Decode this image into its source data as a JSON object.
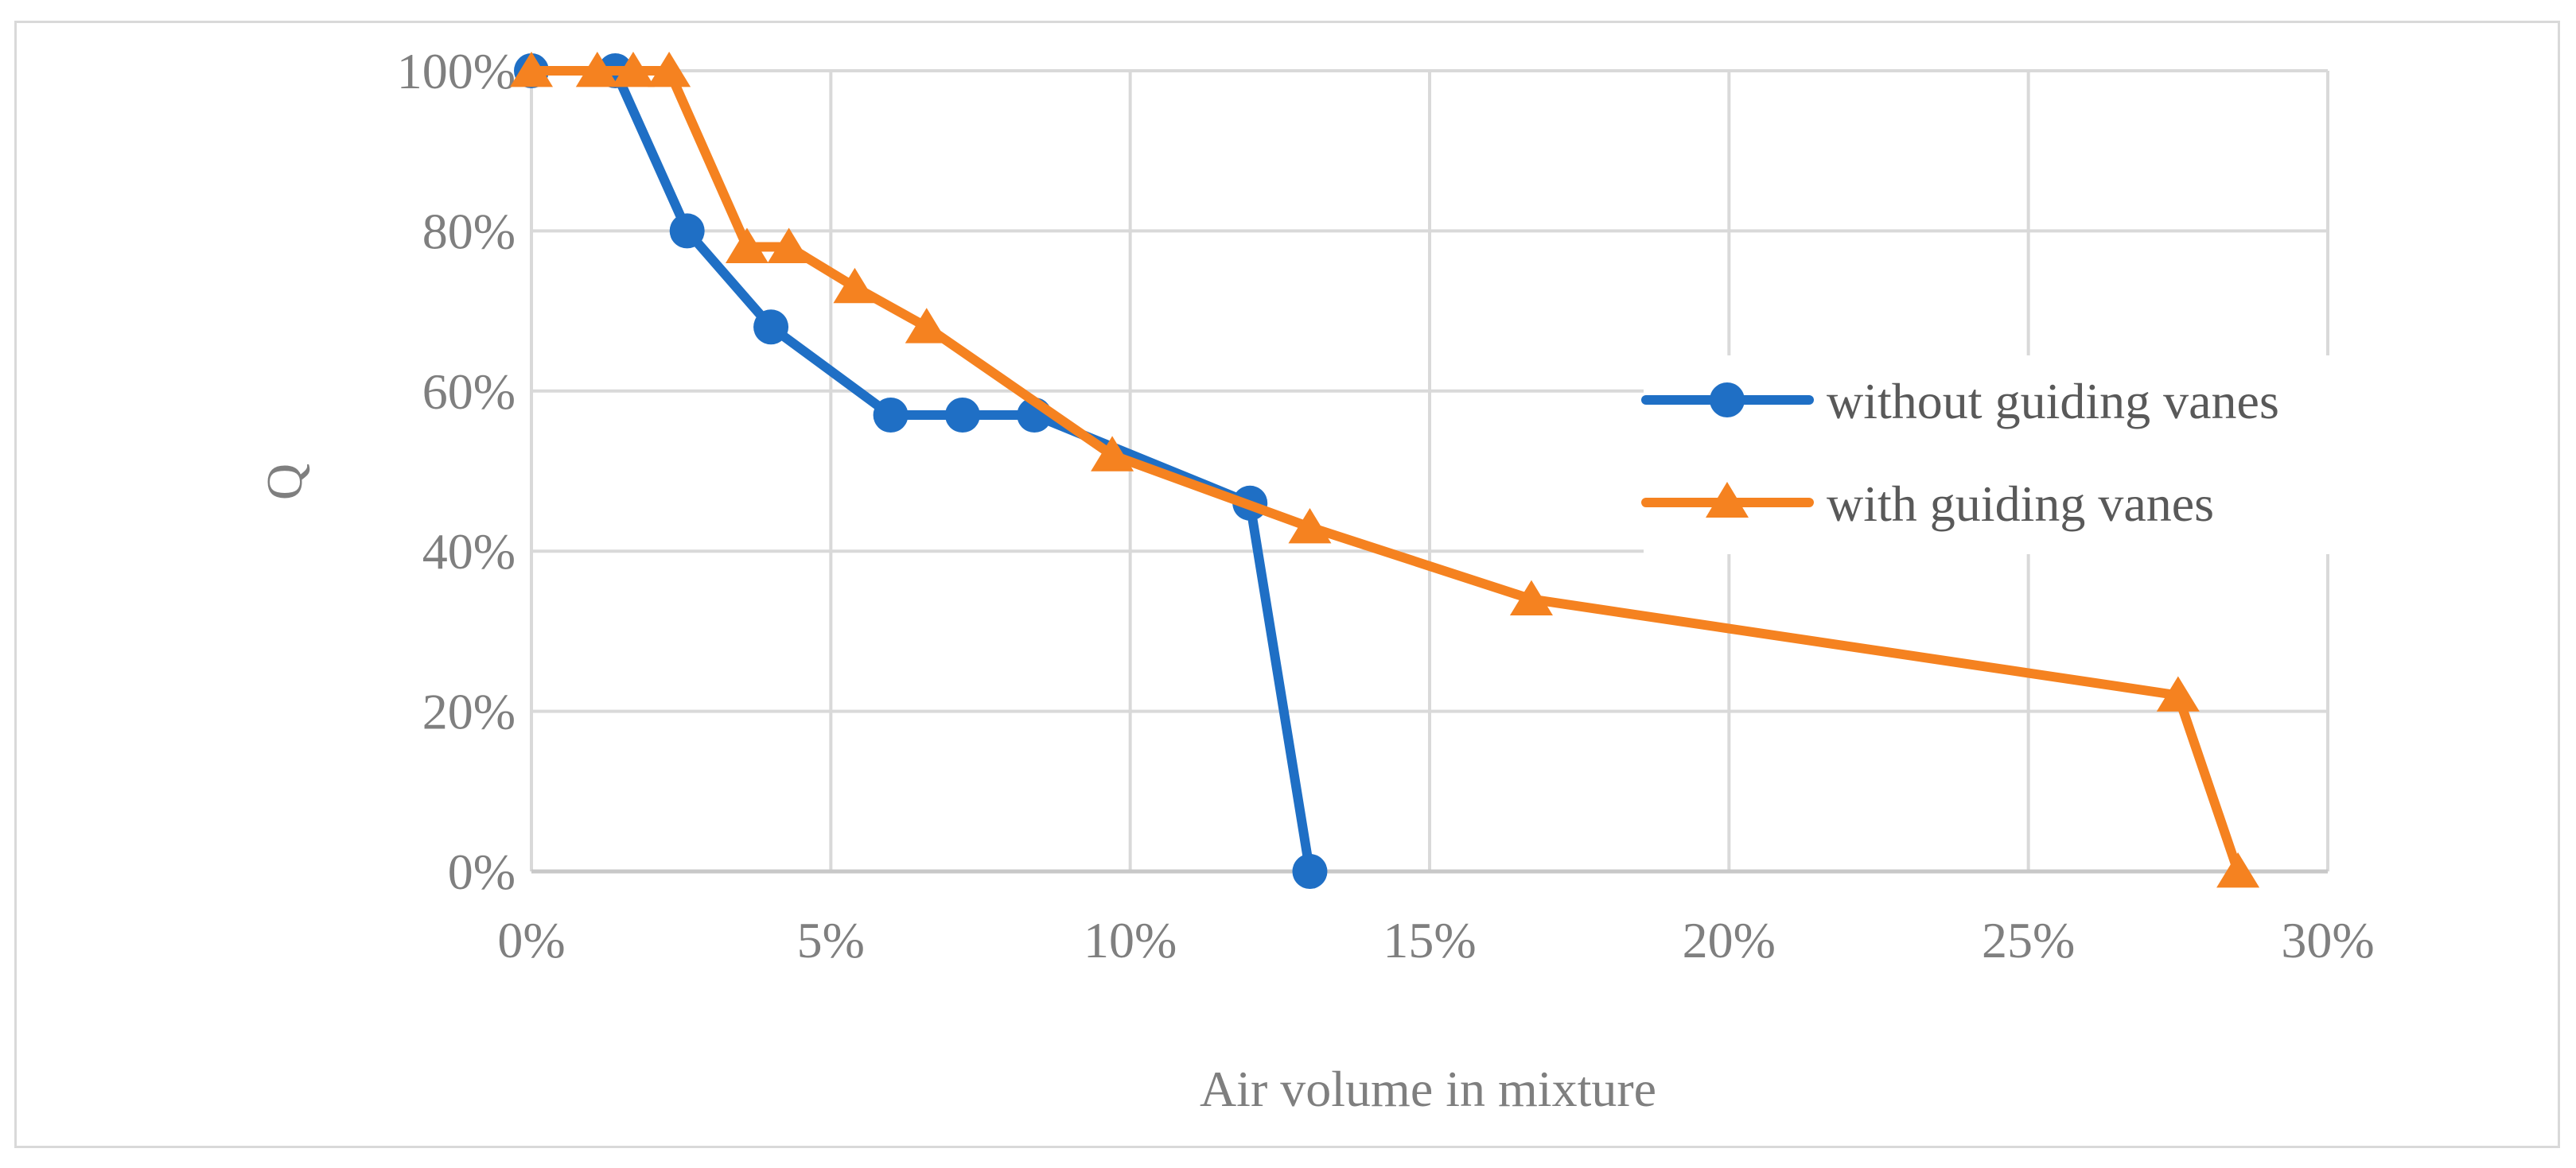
{
  "chart_data": {
    "type": "line",
    "title": "",
    "xlabel": "Air volume in mixture",
    "ylabel": "Q",
    "xlim": [
      0,
      30
    ],
    "ylim": [
      0,
      100
    ],
    "x_ticks": [
      0,
      5,
      10,
      15,
      20,
      25,
      30
    ],
    "y_ticks": [
      0,
      20,
      40,
      60,
      80,
      100
    ],
    "x_tick_labels": [
      "0%",
      "5%",
      "10%",
      "15%",
      "20%",
      "25%",
      "30%"
    ],
    "y_tick_labels": [
      "0%",
      "20%",
      "40%",
      "60%",
      "80%",
      "100%"
    ],
    "grid": true,
    "legend_position": "right",
    "series": [
      {
        "name": "without guiding vanes",
        "color": "#1f6fc5",
        "marker": "circle",
        "x": [
          0.0,
          1.4,
          2.6,
          4.0,
          6.0,
          7.2,
          8.4,
          12.0,
          13.0
        ],
        "y": [
          100,
          100,
          80,
          68,
          57,
          57,
          57,
          46,
          0
        ]
      },
      {
        "name": "with guiding vanes",
        "color": "#f58220",
        "marker": "triangle",
        "x": [
          0.0,
          1.1,
          1.7,
          2.3,
          3.6,
          4.3,
          5.4,
          6.6,
          9.7,
          13.0,
          16.7,
          27.5,
          28.5
        ],
        "y": [
          100,
          100,
          100,
          100,
          78,
          78,
          73,
          68,
          52,
          43,
          34,
          22,
          0
        ]
      }
    ]
  }
}
